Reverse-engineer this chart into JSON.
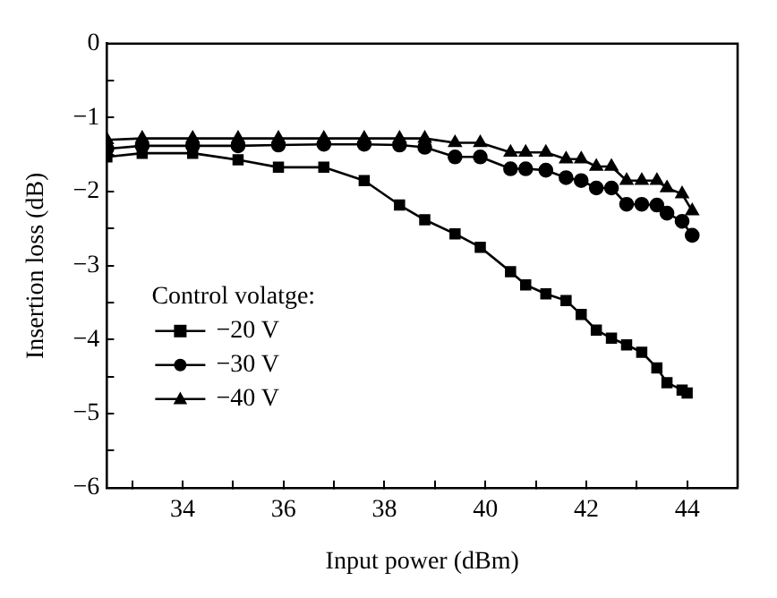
{
  "chart_data": {
    "type": "line",
    "xlabel": "Input power (dBm)",
    "ylabel": "Insertion loss (dB)",
    "legend_title": "Control volatge:",
    "xlim": [
      32.5,
      45
    ],
    "ylim": [
      -6,
      0
    ],
    "xticks": [
      {
        "value": 33,
        "label": null
      },
      34,
      {
        "value": 35,
        "label": null
      },
      36,
      {
        "value": 37,
        "label": null
      },
      38,
      {
        "value": 39,
        "label": null
      },
      40,
      {
        "value": 41,
        "label": null
      },
      42,
      {
        "value": 43,
        "label": null
      },
      44
    ],
    "yticks": [
      -6,
      {
        "value": -5.5,
        "label": null
      },
      -5,
      {
        "value": -4.5,
        "label": null
      },
      -4,
      {
        "value": -3.5,
        "label": null
      },
      -3,
      {
        "value": -2.5,
        "label": null
      },
      -2,
      {
        "value": -1.5,
        "label": null
      },
      -1,
      {
        "value": -0.5,
        "label": null
      },
      0
    ],
    "grid": false,
    "legend": "bottom left",
    "line_style": "solid",
    "series": [
      {
        "name": "−20 V",
        "color": "#000000",
        "marker": "square",
        "x": [
          32.5,
          33.2,
          34.2,
          35.1,
          35.9,
          36.8,
          37.6,
          38.3,
          38.8,
          39.4,
          39.9,
          40.5,
          40.8,
          41.2,
          41.6,
          41.9,
          42.2,
          42.5,
          42.8,
          43.1,
          43.4,
          43.6,
          43.9,
          44.0
        ],
        "values": [
          -1.53,
          -1.48,
          -1.48,
          -1.57,
          -1.67,
          -1.67,
          -1.85,
          -2.18,
          -2.38,
          -2.57,
          -2.75,
          -3.08,
          -3.26,
          -3.38,
          -3.47,
          -3.66,
          -3.87,
          -3.98,
          -4.07,
          -4.17,
          -4.38,
          -4.58,
          -4.68,
          -4.72
        ]
      },
      {
        "name": "−30 V",
        "color": "#000000",
        "marker": "circle",
        "x": [
          32.5,
          33.2,
          34.2,
          35.1,
          35.9,
          36.8,
          37.6,
          38.3,
          38.8,
          39.4,
          39.9,
          40.5,
          40.8,
          41.2,
          41.6,
          41.9,
          42.2,
          42.5,
          42.8,
          43.1,
          43.4,
          43.6,
          43.9,
          44.1
        ],
        "values": [
          -1.42,
          -1.38,
          -1.38,
          -1.38,
          -1.37,
          -1.36,
          -1.36,
          -1.37,
          -1.4,
          -1.53,
          -1.53,
          -1.69,
          -1.69,
          -1.71,
          -1.81,
          -1.85,
          -1.95,
          -1.95,
          -2.17,
          -2.17,
          -2.18,
          -2.29,
          -2.4,
          -2.59
        ]
      },
      {
        "name": "−40 V",
        "color": "#000000",
        "marker": "triangle",
        "x": [
          32.5,
          33.2,
          34.2,
          35.1,
          35.9,
          36.8,
          37.6,
          38.3,
          38.8,
          39.4,
          39.9,
          40.5,
          40.8,
          41.2,
          41.6,
          41.9,
          42.2,
          42.5,
          42.8,
          43.1,
          43.4,
          43.6,
          43.9,
          44.1
        ],
        "values": [
          -1.3,
          -1.28,
          -1.28,
          -1.28,
          -1.28,
          -1.28,
          -1.28,
          -1.28,
          -1.28,
          -1.34,
          -1.34,
          -1.47,
          -1.47,
          -1.47,
          -1.56,
          -1.56,
          -1.66,
          -1.66,
          -1.85,
          -1.85,
          -1.85,
          -1.95,
          -2.03,
          -2.26
        ]
      }
    ]
  }
}
